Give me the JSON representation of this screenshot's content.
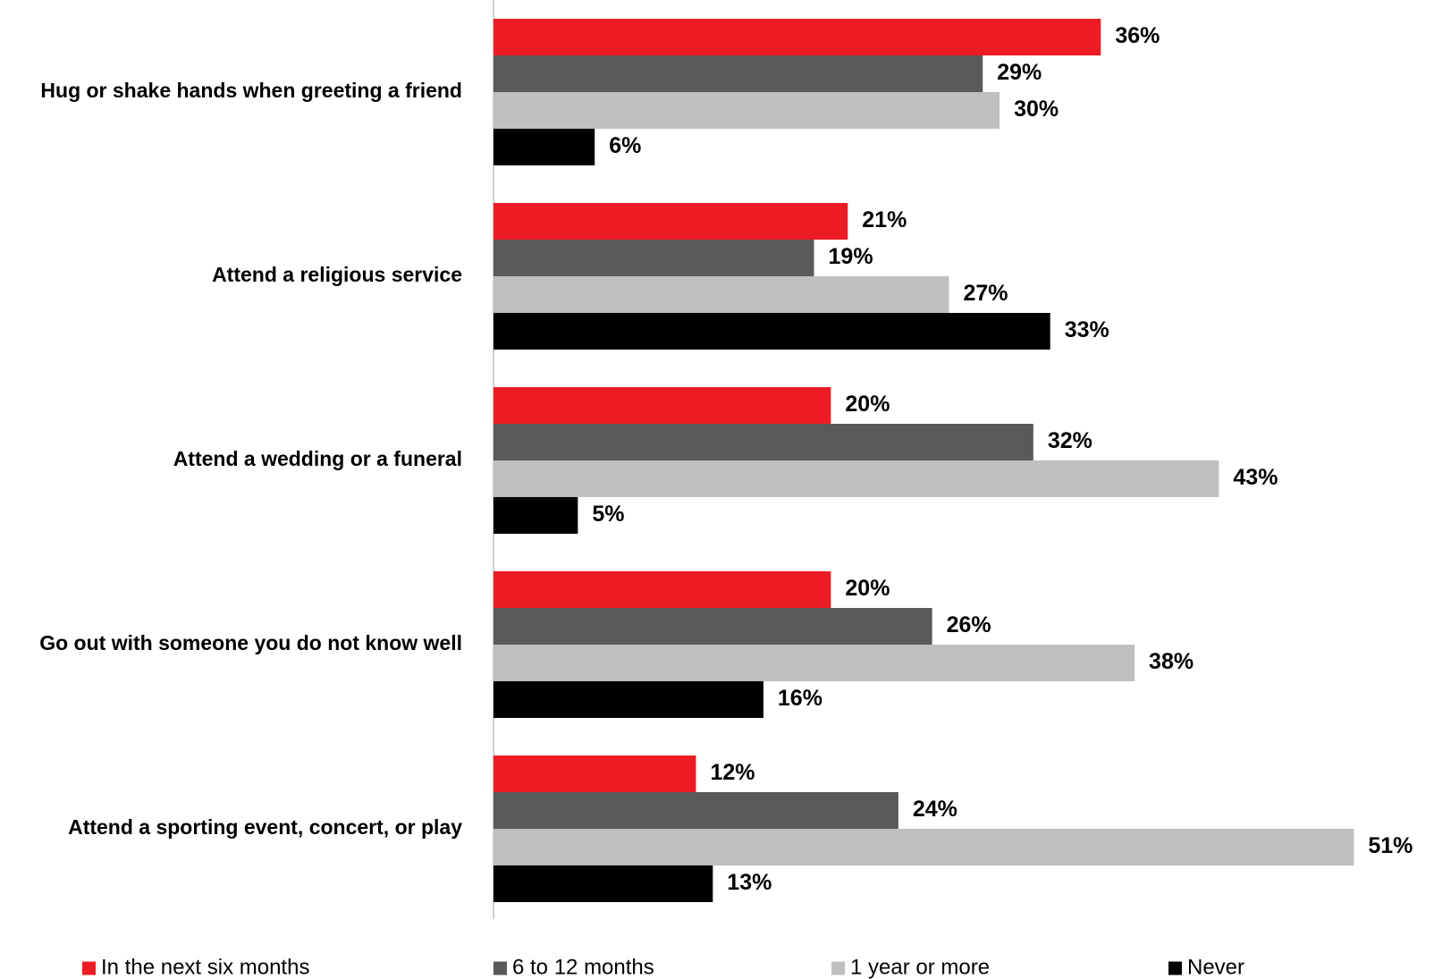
{
  "chart_data": {
    "type": "bar",
    "orientation": "horizontal",
    "title": "",
    "xlabel": "",
    "ylabel": "",
    "xlim": [
      0,
      52
    ],
    "grid": false,
    "legend_position": "bottom",
    "categories": [
      "Hug or shake hands when greeting a friend",
      "Attend a religious service",
      "Attend a wedding or a funeral",
      "Go out with someone you do not know well",
      "Attend a sporting event, concert, or play"
    ],
    "series": [
      {
        "name": "In the next six months",
        "color": "#ED1C24",
        "values": [
          36,
          21,
          20,
          20,
          12
        ],
        "labels": [
          "36%",
          "21%",
          "20%",
          "20%",
          "12%"
        ]
      },
      {
        "name": "6 to 12 months",
        "color": "#595959",
        "values": [
          29,
          19,
          32,
          26,
          24
        ],
        "labels": [
          "29%",
          "19%",
          "32%",
          "26%",
          "24%"
        ]
      },
      {
        "name": "1 year or more",
        "color": "#BFBFBF",
        "values": [
          30,
          27,
          43,
          38,
          51
        ],
        "labels": [
          "30%",
          "27%",
          "43%",
          "38%",
          "51%"
        ]
      },
      {
        "name": "Never",
        "color": "#000000",
        "values": [
          6,
          33,
          5,
          16,
          13
        ],
        "labels": [
          "6%",
          "33%",
          "5%",
          "16%",
          "13%"
        ]
      }
    ]
  }
}
